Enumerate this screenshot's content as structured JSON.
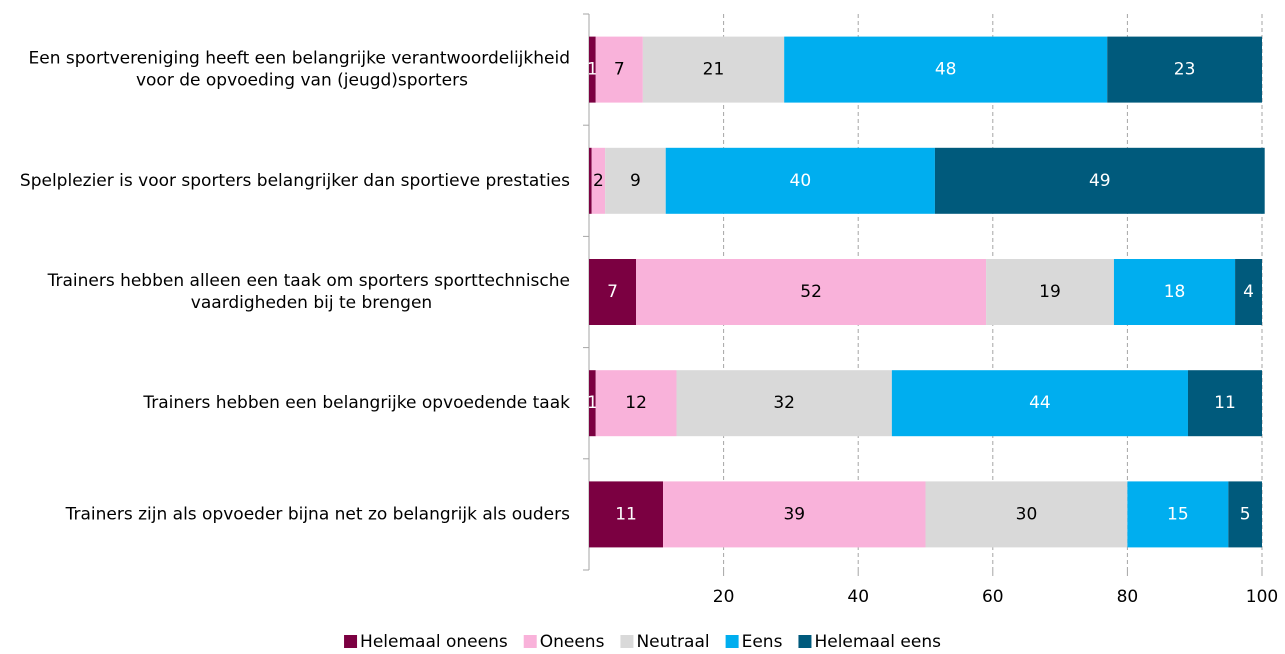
{
  "chart_data": {
    "type": "stacked-barh",
    "categories": [
      "Een sportvereniging heeft een belangrijke verantwoordelijkheid voor de opvoeding van (jeugd)sporters",
      "Spelplezier is voor sporters belangrijker dan sportieve prestaties",
      "Trainers hebben alleen een taak om sporters sporttechnische vaardigheden bij te brengen",
      "Trainers hebben een belangrijke opvoedende taak",
      "Trainers zijn als opvoeder bijna net zo belangrijk als ouders"
    ],
    "series": [
      {
        "name": "Helemaal oneens",
        "color": "#7b0041",
        "values": [
          1,
          0.4,
          7,
          1,
          11
        ],
        "value_labels": [
          "1",
          null,
          "7",
          "1",
          "11"
        ]
      },
      {
        "name": "Oneens",
        "color": "#f9b2da",
        "values": [
          7,
          2,
          52,
          12,
          39
        ]
      },
      {
        "name": "Neutraal",
        "color": "#d9d9d9",
        "values": [
          21,
          9,
          19,
          32,
          30
        ]
      },
      {
        "name": "Eens",
        "color": "#00aeef",
        "values": [
          48,
          40,
          18,
          44,
          15
        ]
      },
      {
        "name": "Helemaal eens",
        "color": "#005a7c",
        "values": [
          23,
          49,
          4,
          11,
          5
        ]
      }
    ],
    "xlim": [
      0,
      100
    ],
    "xticks": [
      20,
      40,
      60,
      80,
      100
    ],
    "grid": true,
    "legend": "bottom"
  }
}
